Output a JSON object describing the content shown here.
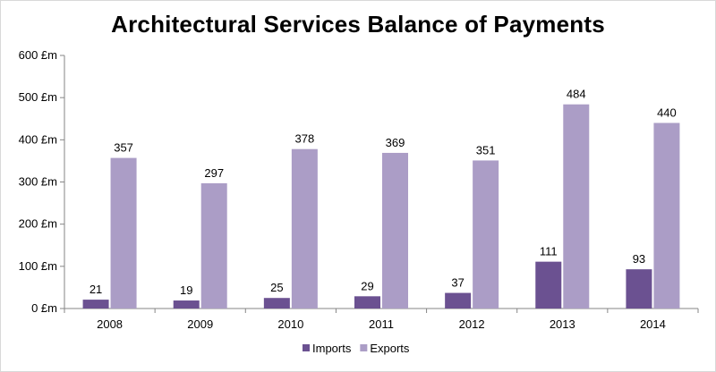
{
  "chart_data": {
    "type": "bar",
    "title": "Architectural Services Balance of Payments",
    "categories": [
      "2008",
      "2009",
      "2010",
      "2011",
      "2012",
      "2013",
      "2014"
    ],
    "series": [
      {
        "name": "Imports",
        "values": [
          21,
          19,
          25,
          29,
          37,
          111,
          93
        ],
        "color": "#6b5191"
      },
      {
        "name": "Exports",
        "values": [
          357,
          297,
          378,
          369,
          351,
          484,
          440
        ],
        "color": "#ab9dc6"
      }
    ],
    "yticks": [
      {
        "value": 0,
        "label": "0 £m"
      },
      {
        "value": 100,
        "label": "100 £m"
      },
      {
        "value": 200,
        "label": "200 £m"
      },
      {
        "value": 300,
        "label": "300 £m"
      },
      {
        "value": 400,
        "label": "400 £m"
      },
      {
        "value": 500,
        "label": "500 £m"
      },
      {
        "value": 600,
        "label": "600 £m"
      }
    ],
    "ylim": [
      0,
      600
    ],
    "grid": false,
    "legend_position": "bottom",
    "xlabel": "",
    "ylabel": ""
  }
}
